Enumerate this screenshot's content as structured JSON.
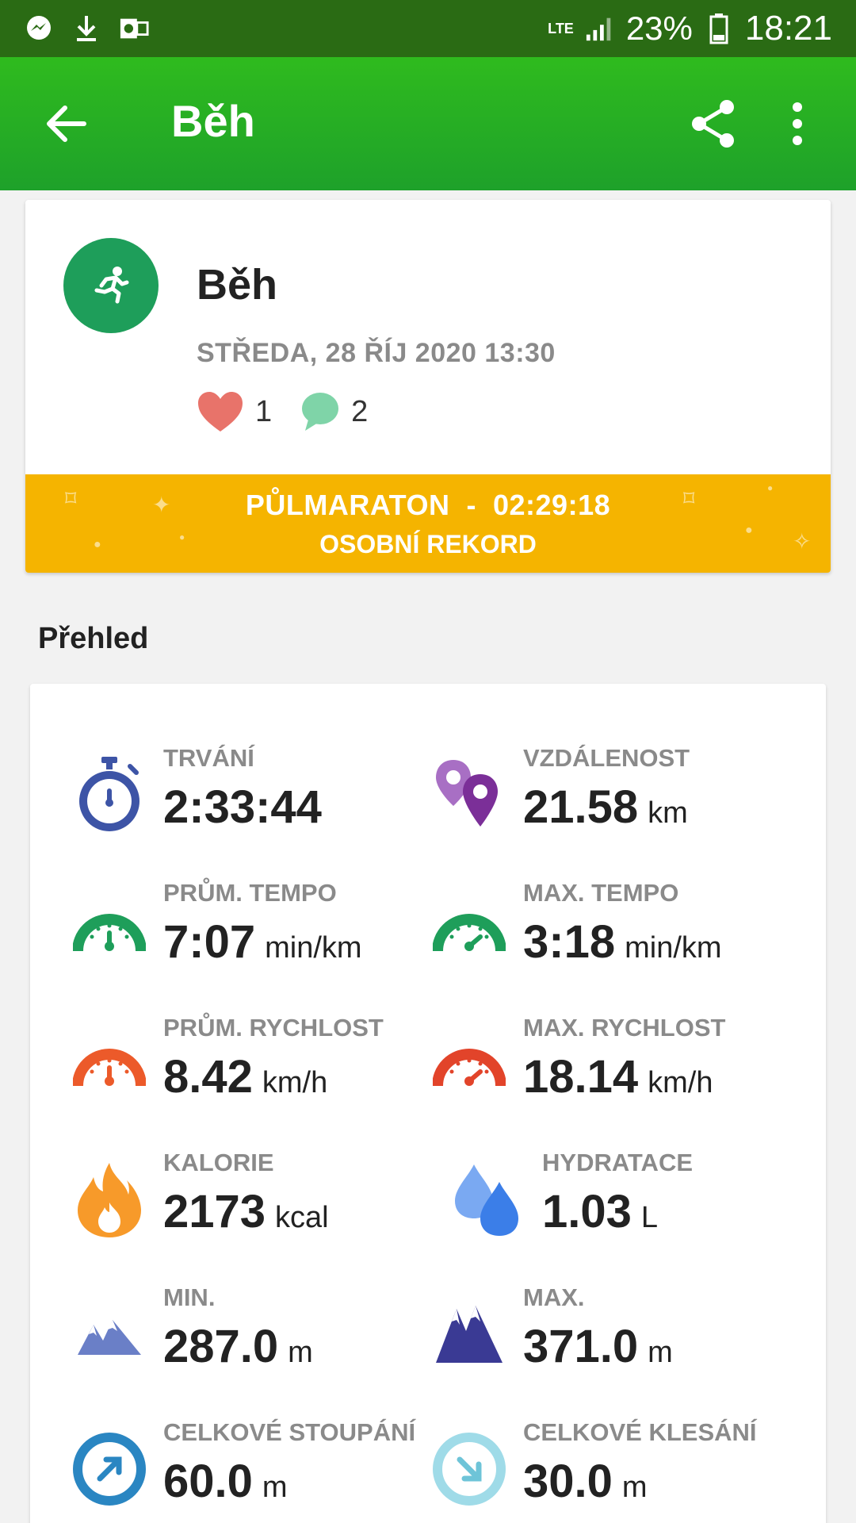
{
  "status_bar": {
    "network": "LTE",
    "battery": "23%",
    "time": "18:21"
  },
  "app_bar": {
    "title": "Běh"
  },
  "activity": {
    "title": "Běh",
    "date": "STŘEDA, 28 ŘÍJ 2020 13:30",
    "likes": "1",
    "comments": "2",
    "record_line1": "PŮLMARATON  -  02:29:18",
    "record_line2": "OSOBNÍ REKORD"
  },
  "overview": {
    "title": "Přehled",
    "stats": [
      {
        "label": "TRVÁNÍ",
        "value": "2:33:44",
        "unit": "",
        "icon": "stopwatch-icon"
      },
      {
        "label": "VZDÁLENOST",
        "value": "21.58",
        "unit": "km",
        "icon": "location-pins-icon"
      },
      {
        "label": "PRŮM. TEMPO",
        "value": "7:07",
        "unit": "min/km",
        "icon": "speedometer-icon"
      },
      {
        "label": "MAX. TEMPO",
        "value": "3:18",
        "unit": "min/km",
        "icon": "speedometer-icon"
      },
      {
        "label": "PRŮM. RYCHLOST",
        "value": "8.42",
        "unit": "km/h",
        "icon": "speedometer-icon"
      },
      {
        "label": "MAX. RYCHLOST",
        "value": "18.14",
        "unit": "km/h",
        "icon": "speedometer-icon"
      },
      {
        "label": "KALORIE",
        "value": "2173",
        "unit": "kcal",
        "icon": "flame-icon"
      },
      {
        "label": "HYDRATACE",
        "value": "1.03",
        "unit": "L",
        "icon": "water-drops-icon"
      },
      {
        "label": "MIN.",
        "value": "287.0",
        "unit": "m",
        "icon": "mountain-icon"
      },
      {
        "label": "MAX.",
        "value": "371.0",
        "unit": "m",
        "icon": "mountain-icon"
      },
      {
        "label": "CELKOVÉ STOUPÁNÍ",
        "value": "60.0",
        "unit": "m",
        "icon": "ascent-icon"
      },
      {
        "label": "CELKOVÉ KLESÁNÍ",
        "value": "30.0",
        "unit": "m",
        "icon": "descent-icon"
      }
    ]
  },
  "colors": {
    "app_bar": "#2fbb1e",
    "status_bar": "#2a6b14",
    "record_banner": "#f5b400",
    "avatar": "#1e9e5a"
  }
}
